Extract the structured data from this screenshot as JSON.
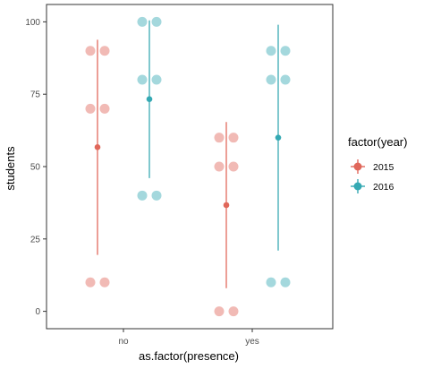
{
  "chart_data": {
    "type": "scatter",
    "xlabel": "as.factor(presence)",
    "ylabel": "students",
    "categories": [
      "no",
      "yes"
    ],
    "ylim": [
      -6,
      106
    ],
    "yticks": [
      0,
      25,
      50,
      75,
      100
    ],
    "grid": false,
    "legend": {
      "title": "factor(year)",
      "position": "right",
      "entries": [
        "2015",
        "2016"
      ]
    },
    "colors": {
      "2015": "#e0675a",
      "2016": "#35a9b3"
    },
    "series": [
      {
        "name": "2015",
        "points": [
          {
            "x": "no",
            "y": 90
          },
          {
            "x": "no",
            "y": 90
          },
          {
            "x": "no",
            "y": 70
          },
          {
            "x": "no",
            "y": 70
          },
          {
            "x": "no",
            "y": 10
          },
          {
            "x": "no",
            "y": 10
          },
          {
            "x": "yes",
            "y": 60
          },
          {
            "x": "yes",
            "y": 60
          },
          {
            "x": "yes",
            "y": 50
          },
          {
            "x": "yes",
            "y": 50
          },
          {
            "x": "yes",
            "y": 0
          },
          {
            "x": "yes",
            "y": 0
          }
        ],
        "summary": [
          {
            "x": "no",
            "mean": 56.7,
            "ymin": 19.5,
            "ymax": 93.8
          },
          {
            "x": "yes",
            "mean": 36.7,
            "ymin": 8,
            "ymax": 65.4
          }
        ]
      },
      {
        "name": "2016",
        "points": [
          {
            "x": "no",
            "y": 100
          },
          {
            "x": "no",
            "y": 100
          },
          {
            "x": "no",
            "y": 80
          },
          {
            "x": "no",
            "y": 80
          },
          {
            "x": "no",
            "y": 40
          },
          {
            "x": "no",
            "y": 40
          },
          {
            "x": "yes",
            "y": 90
          },
          {
            "x": "yes",
            "y": 90
          },
          {
            "x": "yes",
            "y": 80
          },
          {
            "x": "yes",
            "y": 80
          },
          {
            "x": "yes",
            "y": 10
          },
          {
            "x": "yes",
            "y": 10
          }
        ],
        "summary": [
          {
            "x": "no",
            "mean": 73.3,
            "ymin": 46,
            "ymax": 100.5
          },
          {
            "x": "yes",
            "mean": 60,
            "ymin": 21,
            "ymax": 99
          }
        ]
      }
    ]
  }
}
